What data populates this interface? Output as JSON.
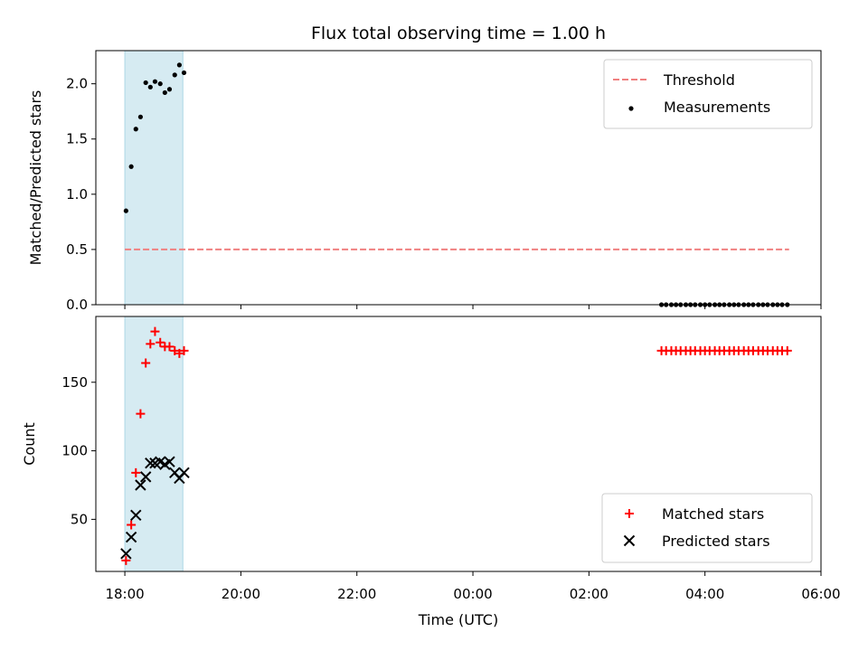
{
  "title": "Flux total observing time = 1.00 h",
  "xlabel": "Time (UTC)",
  "x_tick_labels": [
    "18:00",
    "20:00",
    "22:00",
    "00:00",
    "02:00",
    "04:00",
    "06:00"
  ],
  "colors": {
    "threshold": "#f08080",
    "measurements": "#000000",
    "matched": "#ff0000",
    "predicted": "#000000",
    "span": "#add8e6"
  },
  "chart_data": [
    {
      "type": "scatter",
      "ylabel": "Matched/Predicted stars",
      "x_range_hours": [
        17.5,
        30.0
      ],
      "ylim": [
        0,
        2.3
      ],
      "y_ticks": [
        0.0,
        0.5,
        1.0,
        1.5,
        2.0
      ],
      "y_tick_labels": [
        "0.0",
        "0.5",
        "1.0",
        "1.5",
        "2.0"
      ],
      "shaded_span_hours": [
        18.0,
        19.0
      ],
      "legend_position": "upper right",
      "threshold": {
        "name": "Threshold",
        "y": 0.5,
        "x_from_hours": 18.0,
        "x_to_hours": 29.45
      },
      "series": [
        {
          "name": "Measurements",
          "marker": "dot",
          "x_hours": [
            18.02,
            18.11,
            18.19,
            18.27,
            18.36,
            18.44,
            18.52,
            18.61,
            18.69,
            18.77,
            18.86,
            18.94,
            19.02,
            27.25,
            27.33,
            27.42,
            27.5,
            27.58,
            27.67,
            27.75,
            27.83,
            27.92,
            28.0,
            28.08,
            28.17,
            28.25,
            28.33,
            28.42,
            28.5,
            28.58,
            28.67,
            28.75,
            28.83,
            28.92,
            29.0,
            29.08,
            29.17,
            29.25,
            29.33,
            29.42
          ],
          "y": [
            0.85,
            1.25,
            1.59,
            1.7,
            2.01,
            1.97,
            2.02,
            2.0,
            1.92,
            1.95,
            2.08,
            2.17,
            2.1,
            0,
            0,
            0,
            0,
            0,
            0,
            0,
            0,
            0,
            0,
            0,
            0,
            0,
            0,
            0,
            0,
            0,
            0,
            0,
            0,
            0,
            0,
            0,
            0,
            0,
            0,
            0
          ]
        }
      ]
    },
    {
      "type": "scatter",
      "ylabel": "Count",
      "x_range_hours": [
        17.5,
        30.0
      ],
      "ylim": [
        12,
        198
      ],
      "y_ticks": [
        50,
        100,
        150
      ],
      "y_tick_labels": [
        "50",
        "100",
        "150"
      ],
      "shaded_span_hours": [
        18.0,
        19.0
      ],
      "legend_position": "lower right",
      "series": [
        {
          "name": "Matched stars",
          "marker": "plus",
          "x_hours": [
            18.02,
            18.11,
            18.19,
            18.27,
            18.36,
            18.44,
            18.52,
            18.61,
            18.69,
            18.77,
            18.86,
            18.94,
            19.02,
            27.25,
            27.33,
            27.42,
            27.5,
            27.58,
            27.67,
            27.75,
            27.83,
            27.92,
            28.0,
            28.08,
            28.17,
            28.25,
            28.33,
            28.42,
            28.5,
            28.58,
            28.67,
            28.75,
            28.83,
            28.92,
            29.0,
            29.08,
            29.17,
            29.25,
            29.33,
            29.42
          ],
          "y": [
            20,
            46,
            84,
            127,
            164,
            178,
            187,
            179,
            176,
            176,
            173,
            171,
            173,
            173,
            173,
            173,
            173,
            173,
            173,
            173,
            173,
            173,
            173,
            173,
            173,
            173,
            173,
            173,
            173,
            173,
            173,
            173,
            173,
            173,
            173,
            173,
            173,
            173,
            173,
            173
          ]
        },
        {
          "name": "Predicted stars",
          "marker": "x",
          "x_hours": [
            18.02,
            18.11,
            18.19,
            18.27,
            18.36,
            18.44,
            18.52,
            18.61,
            18.69,
            18.77,
            18.86,
            18.94,
            19.02
          ],
          "y": [
            25,
            37,
            53,
            75,
            81,
            91,
            91,
            92,
            90,
            92,
            84,
            80,
            84
          ]
        }
      ]
    }
  ]
}
